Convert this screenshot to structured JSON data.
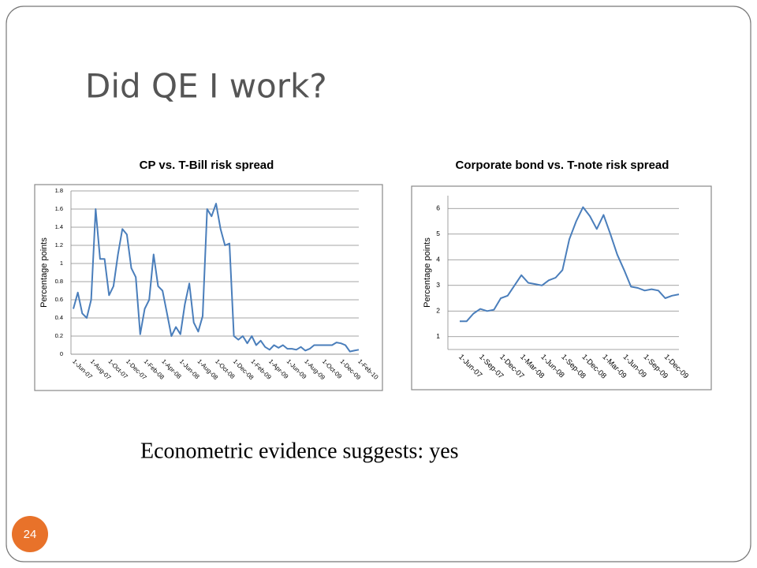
{
  "slide": {
    "title": "Did QE I work?",
    "text": "Econometric evidence suggests: yes",
    "page_number": "24"
  },
  "chart_data": [
    {
      "type": "line",
      "title": "CP vs. T-Bill risk spread",
      "y_label": "Percentage points",
      "color": "#4a7ebb",
      "categories": [
        "1-Jun-07",
        null,
        null,
        null,
        "1-Aug-07",
        null,
        null,
        null,
        "1-Oct-07",
        null,
        null,
        null,
        "1-Dec-07",
        null,
        null,
        null,
        "1-Feb-08",
        null,
        null,
        null,
        "1-Apr-08",
        null,
        null,
        null,
        "1-Jun-08",
        null,
        null,
        null,
        "1-Aug-08",
        null,
        null,
        null,
        "1-Oct-08",
        null,
        null,
        null,
        "1-Dec-08",
        null,
        null,
        null,
        "1-Feb-09",
        null,
        null,
        null,
        "1-Apr-09",
        null,
        null,
        null,
        "1-Jun-09",
        null,
        null,
        null,
        "1-Aug-09",
        null,
        null,
        null,
        "1-Oct-09",
        null,
        null,
        null,
        "1-Dec-09",
        null,
        null,
        null,
        "1-Feb-10"
      ],
      "values": [
        0.5,
        0.68,
        0.45,
        0.4,
        0.6,
        1.6,
        1.05,
        1.05,
        0.65,
        0.75,
        1.1,
        1.38,
        1.32,
        0.95,
        0.85,
        0.22,
        0.5,
        0.6,
        1.1,
        0.75,
        0.7,
        0.45,
        0.2,
        0.3,
        0.22,
        0.55,
        0.78,
        0.35,
        0.25,
        0.42,
        1.6,
        1.52,
        1.66,
        1.38,
        1.2,
        1.22,
        0.2,
        0.16,
        0.2,
        0.12,
        0.2,
        0.1,
        0.15,
        0.08,
        0.05,
        0.1,
        0.07,
        0.1,
        0.06,
        0.06,
        0.05,
        0.08,
        0.04,
        0.06,
        0.1,
        0.1,
        0.1,
        0.1,
        0.1,
        0.13,
        0.12,
        0.1,
        0.03,
        0.04,
        0.05
      ],
      "ylim": [
        0,
        1.8
      ],
      "yticks": [
        0,
        0.2,
        0.4,
        0.6,
        0.8,
        1,
        1.2,
        1.4,
        1.6,
        1.8
      ],
      "grid": true
    },
    {
      "type": "line",
      "title": "Corporate bond vs. T-note risk spread",
      "y_label": "Percentage points",
      "color": "#4a7ebb",
      "categories": [
        "1-Jun-07",
        null,
        null,
        "1-Sep-07",
        null,
        null,
        "1-Dec-07",
        null,
        null,
        "1-Mar-08",
        null,
        null,
        "1-Jun-08",
        null,
        null,
        "1-Sep-08",
        null,
        null,
        "1-Dec-08",
        null,
        null,
        "1-Mar-09",
        null,
        null,
        "1-Jun-09",
        null,
        null,
        "1-Sep-09",
        null,
        null,
        "1-Dec-09",
        null,
        null
      ],
      "values": [
        1.6,
        1.6,
        1.9,
        2.08,
        2.0,
        2.05,
        2.5,
        2.6,
        3.0,
        3.4,
        3.1,
        3.05,
        3.0,
        3.2,
        3.3,
        3.6,
        4.8,
        5.5,
        6.05,
        5.7,
        5.2,
        5.75,
        5.0,
        4.2,
        3.6,
        2.95,
        2.9,
        2.8,
        2.85,
        2.8,
        2.5,
        2.6,
        2.65
      ],
      "ylim": [
        0.5,
        6.5
      ],
      "yticks": [
        1,
        2,
        3,
        4,
        5,
        6
      ],
      "grid": true
    }
  ]
}
